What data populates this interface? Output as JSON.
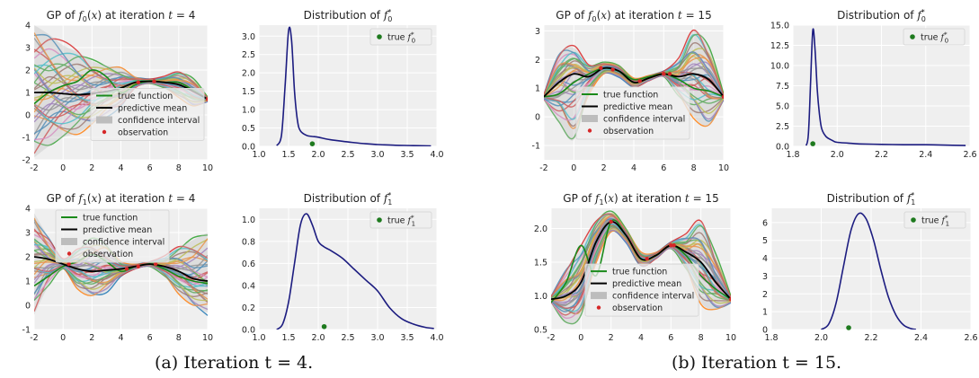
{
  "captions": {
    "a": "(a) Iteration t = 4.",
    "b": "(b) Iteration t = 15."
  },
  "colors": {
    "panel_bg": "#efefef",
    "grid": "#ffffff",
    "true_function": "#1a8a1a",
    "predictive_mean": "#000000",
    "confidence_interval": "#bdbdbd",
    "observation": "#d62728",
    "density_line": "#1c1c80",
    "true_marker": "#1e7a1e"
  },
  "legend_labels": {
    "true_function": "true function",
    "predictive_mean": "predictive mean",
    "confidence_interval": "confidence interval",
    "observation": "observation"
  },
  "chart_data": [
    {
      "id": "gp_f0_t4",
      "type": "line",
      "title": "GP of f0(x) at iteration t = 4",
      "xlim": [
        -2,
        10
      ],
      "ylim": [
        -2,
        4
      ],
      "xticks": [
        -2,
        0,
        2,
        4,
        6,
        8,
        10
      ],
      "yticks": [
        -2,
        -1,
        0,
        1,
        2,
        3,
        4
      ],
      "legend_position": "center-right",
      "true_function": {
        "x": [
          -2,
          -1,
          0,
          1,
          2,
          3,
          4,
          5,
          6,
          7,
          8,
          9,
          10
        ],
        "y": [
          0.5,
          1.0,
          1.3,
          1.5,
          2.0,
          1.7,
          1.0,
          1.35,
          1.5,
          1.45,
          1.45,
          1.1,
          0.7
        ]
      },
      "predictive_mean": {
        "x": [
          -2,
          -1,
          0,
          1,
          2,
          3,
          4,
          5,
          6,
          7,
          8,
          9,
          10
        ],
        "y": [
          1.0,
          1.0,
          0.95,
          0.9,
          0.95,
          1.05,
          1.2,
          1.45,
          1.5,
          1.45,
          1.35,
          1.05,
          0.7
        ]
      },
      "confidence_upper": {
        "x": [
          -2,
          -1,
          0,
          1,
          2,
          3,
          4,
          5,
          6,
          7,
          8,
          9,
          10
        ],
        "y": [
          4.0,
          3.6,
          3.1,
          2.8,
          2.4,
          2.2,
          2.1,
          1.7,
          1.6,
          1.7,
          1.9,
          1.6,
          0.8
        ]
      },
      "confidence_lower": {
        "x": [
          -2,
          -1,
          0,
          1,
          2,
          3,
          4,
          5,
          6,
          7,
          8,
          9,
          10
        ],
        "y": [
          -1.9,
          -1.4,
          -1.0,
          -0.8,
          -0.4,
          0.0,
          0.4,
          1.2,
          1.4,
          1.2,
          0.8,
          0.4,
          0.6
        ]
      },
      "observations": {
        "x": [
          5.2,
          6.3,
          10
        ],
        "y": [
          1.45,
          1.5,
          0.7
        ]
      }
    },
    {
      "id": "dist_f0_t4",
      "type": "line",
      "title": "Distribution of f0*",
      "xlim": [
        1.0,
        4.0
      ],
      "ylim": [
        0,
        3.3
      ],
      "xticks": [
        1.0,
        1.5,
        2.0,
        2.5,
        3.0,
        3.5,
        4.0
      ],
      "yticks": [
        0.0,
        0.5,
        1.0,
        1.5,
        2.0,
        2.5,
        3.0
      ],
      "legend_label": "true f0*",
      "legend_position": "top-right",
      "density": {
        "x": [
          1.3,
          1.38,
          1.44,
          1.5,
          1.55,
          1.6,
          1.65,
          1.7,
          1.8,
          1.9,
          2.0,
          2.2,
          2.5,
          2.8,
          3.0,
          3.3,
          3.6,
          3.9
        ],
        "y": [
          0.02,
          0.3,
          1.6,
          3.15,
          2.9,
          1.5,
          0.7,
          0.42,
          0.3,
          0.27,
          0.25,
          0.18,
          0.12,
          0.07,
          0.05,
          0.03,
          0.02,
          0.01
        ]
      },
      "true_value": {
        "x": 1.9,
        "y": 0.02
      }
    },
    {
      "id": "gp_f0_t15",
      "type": "line",
      "title": "GP of f0(x) at iteration t = 15",
      "xlim": [
        -2,
        10
      ],
      "ylim": [
        -1.5,
        3.2
      ],
      "xticks": [
        -2,
        0,
        2,
        4,
        6,
        8,
        10
      ],
      "yticks": [
        -1,
        0,
        1,
        2,
        3
      ],
      "legend_position": "bottom-left",
      "true_function": {
        "x": [
          -2,
          -1,
          0,
          1,
          2,
          3,
          4,
          5,
          6,
          7,
          8,
          9,
          10
        ],
        "y": [
          0.7,
          0.8,
          1.2,
          1.5,
          1.7,
          1.6,
          1.3,
          1.4,
          1.5,
          1.3,
          1.0,
          0.9,
          0.7
        ]
      },
      "predictive_mean": {
        "x": [
          -2,
          -1,
          0,
          1,
          2,
          3,
          4,
          5,
          6,
          7,
          8,
          9,
          10
        ],
        "y": [
          0.7,
          1.2,
          1.5,
          1.4,
          1.7,
          1.6,
          1.2,
          1.35,
          1.5,
          1.4,
          1.5,
          1.3,
          0.7
        ]
      },
      "confidence_upper": {
        "x": [
          -2,
          -1,
          0,
          1,
          2,
          3,
          4,
          5,
          6,
          7,
          8,
          9,
          10
        ],
        "y": [
          0.8,
          2.2,
          2.4,
          1.8,
          1.9,
          1.8,
          1.35,
          1.45,
          1.6,
          2.0,
          3.0,
          2.4,
          0.8
        ]
      },
      "confidence_lower": {
        "x": [
          -2,
          -1,
          0,
          1,
          2,
          3,
          4,
          5,
          6,
          7,
          8,
          9,
          10
        ],
        "y": [
          0.6,
          -0.2,
          -0.8,
          0.8,
          1.5,
          1.4,
          1.05,
          1.25,
          1.4,
          0.7,
          0.0,
          -0.3,
          0.6
        ]
      },
      "observations": {
        "x": [
          1.8,
          2.6,
          4.4,
          6.0,
          6.4,
          10
        ],
        "y": [
          1.7,
          1.65,
          1.25,
          1.5,
          1.5,
          0.7
        ]
      }
    },
    {
      "id": "dist_f0_t15",
      "type": "line",
      "title": "Distribution of f0*",
      "xlim": [
        1.8,
        2.6
      ],
      "ylim": [
        0,
        15.0
      ],
      "xticks": [
        1.8,
        2.0,
        2.2,
        2.4,
        2.6
      ],
      "yticks": [
        0.0,
        2.5,
        5.0,
        7.5,
        10.0,
        12.5,
        15.0
      ],
      "legend_label": "true f0*",
      "legend_position": "top-right",
      "density": {
        "x": [
          1.86,
          1.87,
          1.88,
          1.89,
          1.9,
          1.91,
          1.92,
          1.93,
          1.95,
          1.98,
          2.0,
          2.05,
          2.1,
          2.2,
          2.3,
          2.4,
          2.5,
          2.58
        ],
        "y": [
          0.1,
          1.5,
          8.0,
          14.4,
          12.0,
          7.0,
          4.0,
          2.2,
          1.2,
          0.7,
          0.5,
          0.4,
          0.3,
          0.25,
          0.2,
          0.2,
          0.15,
          0.1
        ]
      },
      "true_value": {
        "x": 1.89,
        "y": 0.1
      }
    },
    {
      "id": "gp_f1_t4",
      "type": "line",
      "title": "GP of f1(x) at iteration t = 4",
      "xlim": [
        -2,
        10
      ],
      "ylim": [
        -1,
        4
      ],
      "xticks": [
        -2,
        0,
        2,
        4,
        6,
        8,
        10
      ],
      "yticks": [
        -1,
        0,
        1,
        2,
        3,
        4
      ],
      "legend_position": "top-center",
      "true_function": {
        "x": [
          -2,
          -1,
          0,
          1,
          2,
          3,
          4,
          5,
          6,
          7,
          8,
          9,
          10
        ],
        "y": [
          0.8,
          1.2,
          1.6,
          1.8,
          2.1,
          1.8,
          1.4,
          1.6,
          1.7,
          1.5,
          1.2,
          1.0,
          0.9
        ]
      },
      "predictive_mean": {
        "x": [
          -2,
          -1,
          0,
          1,
          2,
          3,
          4,
          5,
          6,
          7,
          8,
          9,
          10
        ],
        "y": [
          2.0,
          1.9,
          1.7,
          1.5,
          1.4,
          1.45,
          1.5,
          1.6,
          1.7,
          1.6,
          1.4,
          1.1,
          1.0
        ]
      },
      "confidence_upper": {
        "x": [
          -2,
          -1,
          0,
          1,
          2,
          3,
          4,
          5,
          6,
          7,
          8,
          9,
          10
        ],
        "y": [
          3.8,
          2.8,
          1.9,
          2.3,
          2.7,
          2.5,
          1.8,
          1.7,
          1.8,
          2.0,
          2.4,
          2.7,
          3.0
        ]
      },
      "confidence_lower": {
        "x": [
          -2,
          -1,
          0,
          1,
          2,
          3,
          4,
          5,
          6,
          7,
          8,
          9,
          10
        ],
        "y": [
          -0.4,
          0.8,
          1.5,
          0.7,
          0.4,
          0.6,
          1.2,
          1.5,
          1.6,
          1.2,
          0.5,
          0.0,
          -0.3
        ]
      },
      "observations": {
        "x": [
          0.4,
          4.4,
          5.2,
          6.4
        ],
        "y": [
          1.7,
          1.5,
          1.6,
          1.7
        ]
      }
    },
    {
      "id": "dist_f1_t4",
      "type": "line",
      "title": "Distribution of f1*",
      "xlim": [
        1.0,
        4.0
      ],
      "ylim": [
        0,
        1.1
      ],
      "xticks": [
        1.0,
        1.5,
        2.0,
        2.5,
        3.0,
        3.5,
        4.0
      ],
      "yticks": [
        0.0,
        0.2,
        0.4,
        0.6,
        0.8,
        1.0
      ],
      "legend_label": "true f1*",
      "legend_position": "top-right",
      "density": {
        "x": [
          1.3,
          1.4,
          1.5,
          1.6,
          1.7,
          1.8,
          1.9,
          2.0,
          2.1,
          2.2,
          2.4,
          2.6,
          2.8,
          3.0,
          3.2,
          3.4,
          3.6,
          3.8,
          3.95
        ],
        "y": [
          0.0,
          0.05,
          0.25,
          0.6,
          0.95,
          1.05,
          0.95,
          0.8,
          0.75,
          0.72,
          0.65,
          0.55,
          0.45,
          0.35,
          0.2,
          0.1,
          0.05,
          0.02,
          0.01
        ]
      },
      "true_value": {
        "x": 2.1,
        "y": 0.01
      }
    },
    {
      "id": "gp_f1_t15",
      "type": "line",
      "title": "GP of f1(x) at iteration t = 15",
      "xlim": [
        -2,
        10
      ],
      "ylim": [
        0.5,
        2.3
      ],
      "xticks": [
        -2,
        0,
        2,
        4,
        6,
        8,
        10
      ],
      "yticks": [
        0.5,
        1.0,
        1.5,
        2.0
      ],
      "legend_position": "bottom-center",
      "true_function": {
        "x": [
          -2,
          -1,
          0,
          1,
          2,
          3,
          4,
          5,
          6,
          7,
          8,
          9,
          10
        ],
        "y": [
          0.9,
          1.2,
          1.75,
          1.3,
          2.1,
          1.9,
          1.55,
          1.6,
          1.75,
          1.6,
          1.3,
          1.1,
          0.95
        ]
      },
      "predictive_mean": {
        "x": [
          -2,
          -1,
          0,
          1,
          2,
          3,
          4,
          5,
          6,
          7,
          8,
          9,
          10
        ],
        "y": [
          0.95,
          1.0,
          1.2,
          1.8,
          2.1,
          1.9,
          1.55,
          1.6,
          1.75,
          1.65,
          1.5,
          1.2,
          0.95
        ]
      },
      "confidence_upper": {
        "x": [
          -2,
          -1,
          0,
          1,
          2,
          3,
          4,
          5,
          6,
          7,
          8,
          9,
          10
        ],
        "y": [
          1.0,
          1.4,
          1.7,
          2.1,
          2.25,
          2.0,
          1.65,
          1.65,
          1.8,
          1.9,
          2.1,
          1.6,
          1.0
        ]
      },
      "confidence_lower": {
        "x": [
          -2,
          -1,
          0,
          1,
          2,
          3,
          4,
          5,
          6,
          7,
          8,
          9,
          10
        ],
        "y": [
          0.9,
          0.6,
          0.7,
          1.5,
          1.95,
          1.8,
          1.45,
          1.55,
          1.7,
          1.4,
          0.9,
          0.8,
          0.9
        ]
      },
      "observations": {
        "x": [
          2.0,
          4.4,
          6.0,
          6.2,
          10
        ],
        "y": [
          2.1,
          1.55,
          1.75,
          1.75,
          0.95
        ]
      }
    },
    {
      "id": "dist_f1_t15",
      "type": "line",
      "title": "Distribution of f1*",
      "xlim": [
        1.8,
        2.6
      ],
      "ylim": [
        0,
        6.8
      ],
      "xticks": [
        1.8,
        2.0,
        2.2,
        2.4,
        2.6
      ],
      "yticks": [
        0,
        1,
        2,
        3,
        4,
        5,
        6
      ],
      "legend_label": "true f1*",
      "legend_position": "top-right",
      "density": {
        "x": [
          2.0,
          2.03,
          2.06,
          2.09,
          2.12,
          2.15,
          2.18,
          2.21,
          2.24,
          2.27,
          2.3,
          2.33,
          2.36,
          2.38
        ],
        "y": [
          0.0,
          0.3,
          1.5,
          3.6,
          5.6,
          6.5,
          6.2,
          5.0,
          3.3,
          1.8,
          0.8,
          0.25,
          0.05,
          0.0
        ]
      },
      "true_value": {
        "x": 2.11,
        "y": 0.0
      }
    }
  ]
}
